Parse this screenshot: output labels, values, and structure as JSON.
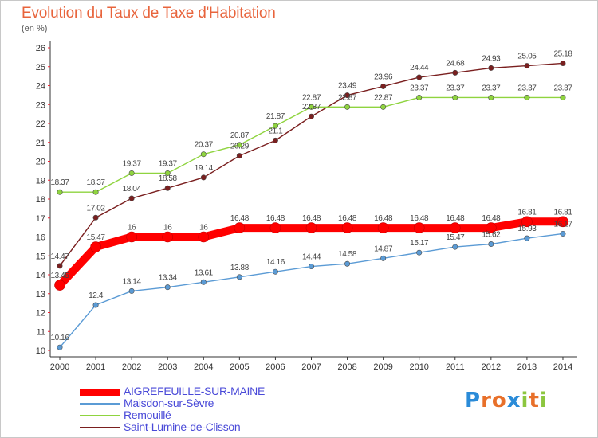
{
  "header": {
    "title": "Evolution du Taux de Taxe d'Habitation",
    "subtitle": "(en %)"
  },
  "logo": {
    "text": "Proxiti",
    "letters": [
      "P",
      "r",
      "o",
      "x",
      "i",
      "t",
      "i"
    ],
    "colors": [
      "#2a8bd8",
      "#e8702a",
      "#e8702a",
      "#2a8bd8",
      "#8cc63f",
      "#e8702a",
      "#8cc63f"
    ]
  },
  "chart_data": {
    "type": "line",
    "title": "Evolution du Taux de Taxe d'Habitation",
    "subtitle": "(en %)",
    "xlabel": "",
    "ylabel": "",
    "x": [
      "2000",
      "2001",
      "2002",
      "2003",
      "2004",
      "2005",
      "2006",
      "2007",
      "2008",
      "2009",
      "2010",
      "2011",
      "2012",
      "2013",
      "2014"
    ],
    "ylim": [
      10,
      26
    ],
    "yticks": [
      10,
      11,
      12,
      13,
      14,
      15,
      16,
      17,
      18,
      19,
      20,
      21,
      22,
      23,
      24,
      25,
      26
    ],
    "grid": false,
    "legend_position": "bottom-left",
    "series": [
      {
        "name": "AIGREFEUILLE-SUR-MAINE",
        "color": "#ff0000",
        "emphasis": true,
        "values": [
          13.45,
          15.47,
          16,
          16,
          16,
          16.48,
          16.48,
          16.48,
          16.48,
          16.48,
          16.48,
          16.48,
          16.48,
          16.81,
          16.81
        ],
        "labels": [
          "13.45",
          "15.47",
          "16",
          "16",
          "16",
          "16.48",
          "16.48",
          "16.48",
          "16.48",
          "16.48",
          "16.48",
          "16.48",
          "16.48",
          "16.81",
          "16.81"
        ]
      },
      {
        "name": "Maisdon-sur-Sèvre",
        "color": "#5b9bd5",
        "emphasis": false,
        "values": [
          10.16,
          12.4,
          13.14,
          13.34,
          13.61,
          13.88,
          14.16,
          14.44,
          14.58,
          14.87,
          15.17,
          15.47,
          15.62,
          15.93,
          16.17
        ],
        "labels": [
          "10.16",
          "12.4",
          "13.14",
          "13.34",
          "13.61",
          "13.88",
          "14.16",
          "14.44",
          "14.58",
          "14.87",
          "15.17",
          "15.47",
          "15.62",
          "15.93",
          "16.17"
        ]
      },
      {
        "name": "Remouillé",
        "color": "#8fd43f",
        "emphasis": false,
        "values": [
          18.37,
          18.37,
          19.37,
          19.37,
          20.37,
          20.87,
          21.87,
          22.87,
          22.87,
          22.87,
          23.37,
          23.37,
          23.37,
          23.37,
          23.37
        ],
        "labels": [
          "18.37",
          "18.37",
          "19.37",
          "19.37",
          "20.37",
          "20.87",
          "21.87",
          "22.87",
          "22.87",
          "22.87",
          "23.37",
          "23.37",
          "23.37",
          "23.37",
          "23.37"
        ]
      },
      {
        "name": "Saint-Lumine-de-Clisson",
        "color": "#7a1f1f",
        "emphasis": false,
        "values": [
          14.47,
          17.02,
          18.04,
          18.58,
          19.14,
          20.29,
          21.1,
          22.37,
          23.49,
          23.96,
          24.44,
          24.68,
          24.93,
          25.05,
          25.18
        ],
        "labels": [
          "14.47",
          "17.02",
          "18.04",
          "18.58",
          "19.14",
          "20.29",
          "21.1",
          "22.37",
          "23.49",
          "23.96",
          "24.44",
          "24.68",
          "24.93",
          "25.05",
          "25.18"
        ]
      }
    ]
  }
}
